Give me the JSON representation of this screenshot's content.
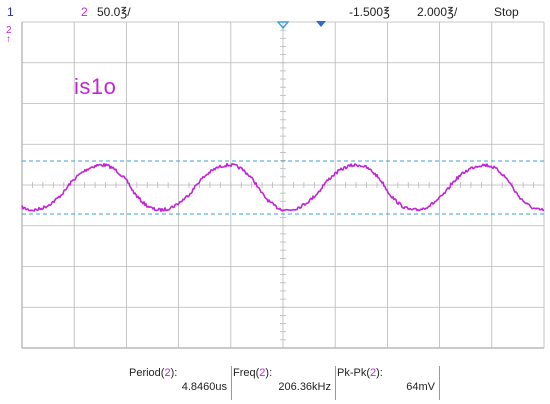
{
  "header": {
    "ch1_number": "1",
    "ch2_number": "2",
    "ch2_scale": "50.0℥/",
    "trigger_level": "-1.500℥",
    "timebase": "2.000℥/",
    "run_state": "Stop"
  },
  "ch2_marker": {
    "channel": "2",
    "symbol": "↑"
  },
  "trace_label": "is1o",
  "measurements": {
    "period": {
      "name": "Period",
      "channel": "2",
      "value": "4.8460us"
    },
    "freq": {
      "name": "Freq",
      "channel": "2",
      "value": "206.36kHz"
    },
    "pkpk": {
      "name": "Pk-Pk",
      "channel": "2",
      "value": "64mV"
    }
  },
  "colors": {
    "trace": "#c026d3",
    "cursor": "#3f9fd4",
    "grid": "#b8b8b8",
    "trigger_marker": "#3f9fd4",
    "ch1": "#2a2aa8"
  },
  "waveform": {
    "cycles_on_screen": 4.1,
    "peak_to_peak": "64mV",
    "shape": "asymmetric triangular-sine with noise"
  }
}
